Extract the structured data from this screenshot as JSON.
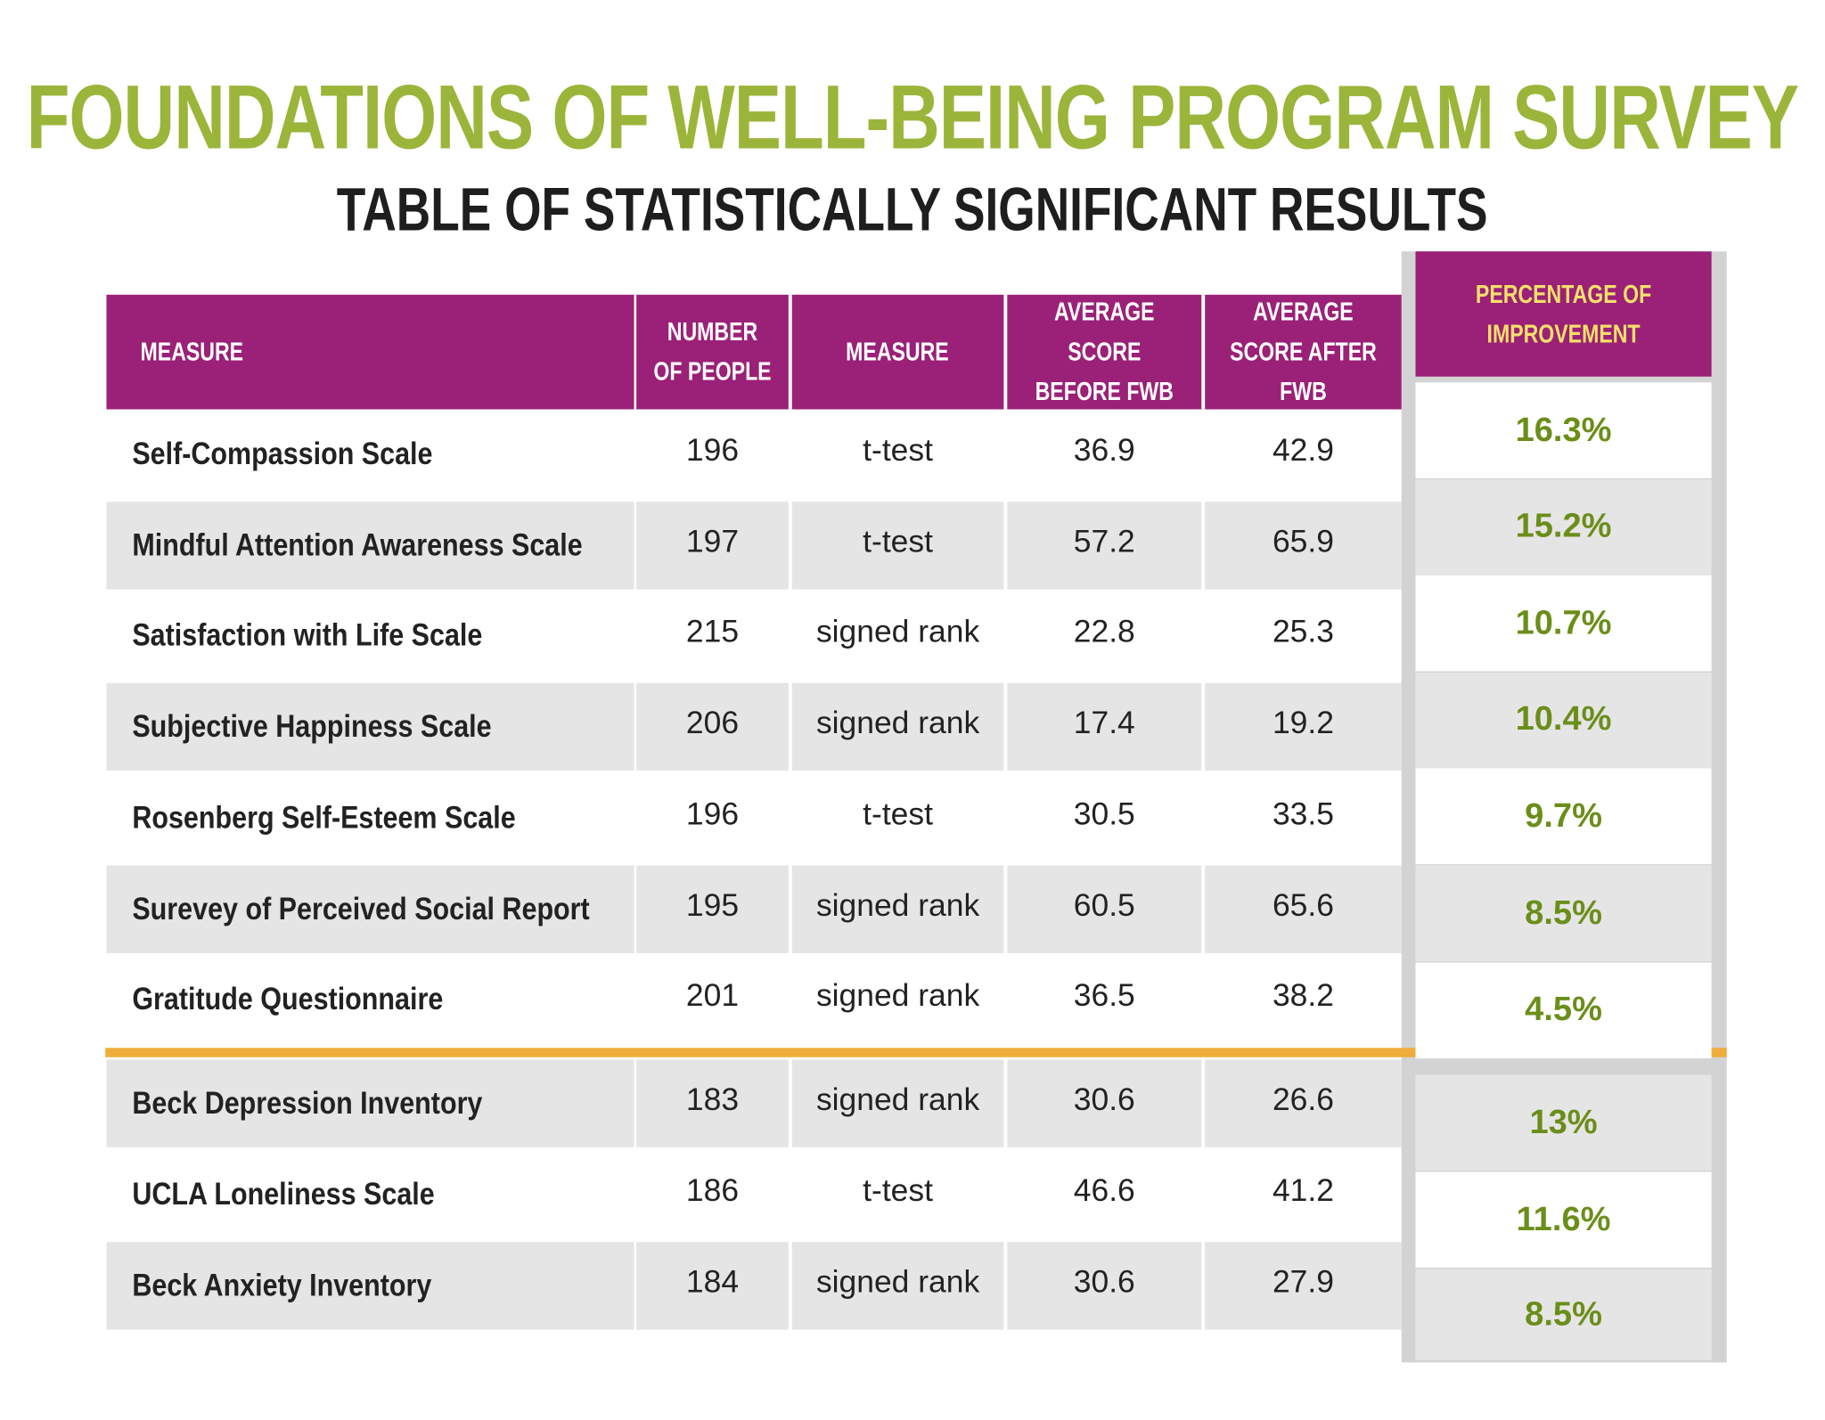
{
  "header": {
    "title": "FOUNDATIONS OF WELL-BEING PROGRAM SURVEY",
    "subtitle": "TABLE OF STATISTICALLY SIGNIFICANT RESULTS"
  },
  "table": {
    "columns": [
      "MEASURE",
      "NUMBER OF PEOPLE",
      "MEASURE",
      "AVERAGE SCORE BEFORE FWB",
      "AVERAGE SCORE AFTER FWB",
      "PERCENTAGE OF IMPROVEMENT"
    ],
    "rows": [
      [
        "Self-Compassion Scale",
        "196",
        "t-test",
        "36.9",
        "42.9",
        "16.3%"
      ],
      [
        "Mindful Attention Awareness Scale",
        "197",
        "t-test",
        "57.2",
        "65.9",
        "15.2%"
      ],
      [
        "Satisfaction with Life Scale",
        "215",
        "signed rank",
        "22.8",
        "25.3",
        "10.7%"
      ],
      [
        "Subjective Happiness Scale",
        "206",
        "signed rank",
        "17.4",
        "19.2",
        "10.4%"
      ],
      [
        "Rosenberg Self-Esteem Scale",
        "196",
        "t-test",
        "30.5",
        "33.5",
        "9.7%"
      ],
      [
        "Surevey of Perceived Social Report",
        "195",
        "signed rank",
        "60.5",
        "65.6",
        "8.5%"
      ],
      [
        "Gratitude Questionnaire",
        "201",
        "signed rank",
        "36.5",
        "38.2",
        "4.5%"
      ],
      [
        "Beck Depression Inventory",
        "183",
        "signed rank",
        "30.6",
        "26.6",
        "13%"
      ],
      [
        "UCLA Loneliness Scale",
        "186",
        "t-test",
        "46.6",
        "41.2",
        "11.6%"
      ],
      [
        "Beck Anxiety Inventory",
        "184",
        "signed rank",
        "30.6",
        "27.9",
        "8.5%"
      ]
    ]
  }
}
